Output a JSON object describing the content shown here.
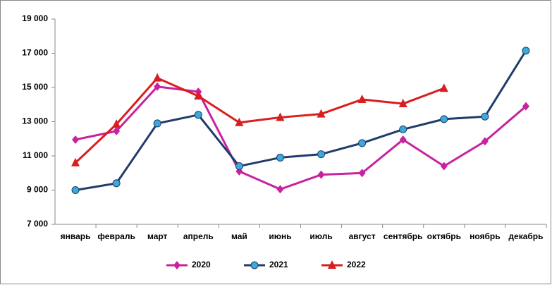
{
  "chart_data": {
    "type": "line",
    "categories": [
      "январь",
      "февраль",
      "март",
      "апрель",
      "май",
      "июнь",
      "июль",
      "август",
      "сентябрь",
      "октябрь",
      "ноябрь",
      "декабрь"
    ],
    "series": [
      {
        "name": "2020",
        "color": "#c8229f",
        "marker": "diamond",
        "marker_color": "#c8229f",
        "values": [
          11950,
          12450,
          15050,
          14750,
          10100,
          9050,
          9900,
          10000,
          11950,
          10400,
          11850,
          13900
        ]
      },
      {
        "name": "2021",
        "color": "#1f3c6b",
        "marker": "circle",
        "marker_color": "#3ba9d9",
        "values": [
          9000,
          9400,
          12900,
          13400,
          10400,
          10900,
          11100,
          11750,
          12550,
          13150,
          13300,
          17150
        ]
      },
      {
        "name": "2022",
        "color": "#d81e1e",
        "marker": "triangle",
        "marker_color": "#d81e1e",
        "values": [
          10600,
          12850,
          15550,
          14500,
          12950,
          13250,
          13450,
          14300,
          14050,
          14950,
          null,
          null
        ]
      }
    ],
    "ylim": [
      7000,
      19000
    ],
    "yticks": [
      {
        "value": 7000,
        "label": "7 000"
      },
      {
        "value": 9000,
        "label": "9 000"
      },
      {
        "value": 11000,
        "label": "11 000"
      },
      {
        "value": 13000,
        "label": "13 000"
      },
      {
        "value": 15000,
        "label": "15 000"
      },
      {
        "value": 17000,
        "label": "17 000"
      },
      {
        "value": 19000,
        "label": "19 000"
      }
    ],
    "grid": false,
    "legend": "bottom"
  }
}
